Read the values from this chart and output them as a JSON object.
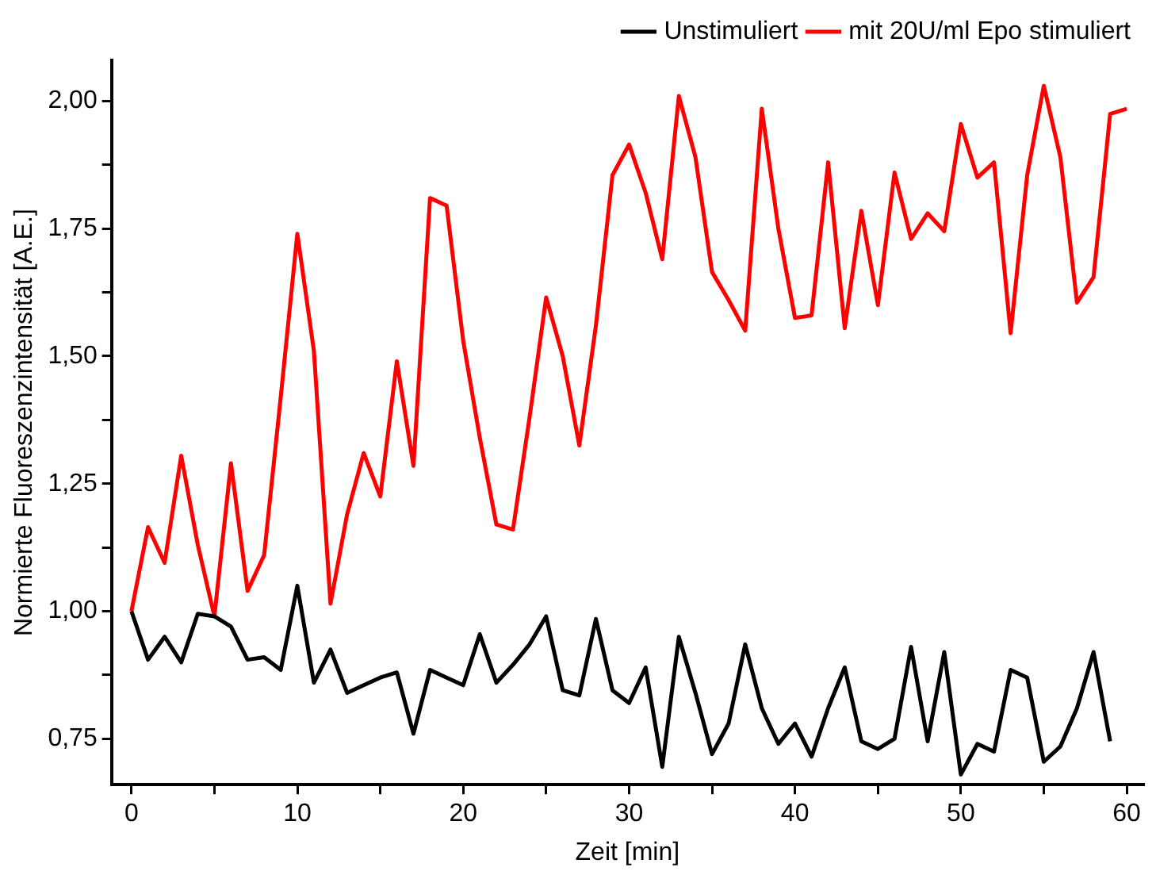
{
  "chart_data": {
    "type": "line",
    "xlabel": "Zeit [min]",
    "ylabel": "Normierte Fluoreszenzintensität [A.E.]",
    "x": [
      0,
      1,
      2,
      3,
      4,
      5,
      6,
      7,
      8,
      9,
      10,
      11,
      12,
      13,
      14,
      15,
      16,
      17,
      18,
      19,
      20,
      21,
      22,
      23,
      24,
      25,
      26,
      27,
      28,
      29,
      30,
      31,
      32,
      33,
      34,
      35,
      36,
      37,
      38,
      39,
      40,
      41,
      42,
      43,
      44,
      45,
      46,
      47,
      48,
      49,
      50,
      51,
      52,
      53,
      54,
      55,
      56,
      57,
      58,
      59,
      60
    ],
    "series": [
      {
        "name": "Unstimuliert",
        "color": "#000000",
        "values": [
          1.0,
          0.905,
          0.95,
          0.9,
          0.995,
          0.99,
          0.97,
          0.905,
          0.91,
          0.885,
          1.05,
          0.86,
          0.925,
          0.84,
          0.855,
          0.87,
          0.88,
          0.76,
          0.885,
          0.87,
          0.855,
          0.955,
          0.86,
          0.895,
          0.935,
          0.99,
          0.845,
          0.835,
          0.985,
          0.845,
          0.82,
          0.89,
          0.695,
          0.95,
          0.84,
          0.72,
          0.78,
          0.935,
          0.81,
          0.74,
          0.78,
          0.715,
          0.81,
          0.89,
          0.745,
          0.73,
          0.75,
          0.93,
          0.745,
          0.92,
          0.68,
          0.74,
          0.725,
          0.885,
          0.87,
          0.705,
          0.735,
          0.81,
          0.92,
          0.745,
          null
        ]
      },
      {
        "name": "mit 20U/ml Epo stimuliert",
        "color": "#ff0000",
        "values": [
          1.0,
          1.165,
          1.095,
          1.305,
          1.13,
          0.99,
          1.29,
          1.04,
          1.11,
          1.42,
          1.74,
          1.51,
          1.015,
          1.19,
          1.31,
          1.225,
          1.49,
          1.285,
          1.81,
          1.795,
          1.53,
          1.34,
          1.17,
          1.16,
          1.38,
          1.615,
          1.5,
          1.325,
          1.56,
          1.855,
          1.915,
          1.82,
          1.69,
          2.01,
          1.89,
          1.665,
          1.61,
          1.55,
          1.985,
          1.75,
          1.575,
          1.58,
          1.88,
          1.555,
          1.785,
          1.6,
          1.86,
          1.73,
          1.78,
          1.745,
          1.955,
          1.85,
          1.88,
          1.545,
          1.855,
          2.03,
          1.89,
          1.605,
          1.655,
          1.975,
          1.985
        ]
      }
    ],
    "xlim": [
      -1.2,
      61
    ],
    "xticks": [
      0,
      {
        "value": 5,
        "label": null
      },
      10,
      {
        "value": 15,
        "label": null
      },
      20,
      {
        "value": 25,
        "label": null
      },
      30,
      {
        "value": 35,
        "label": null
      },
      40,
      {
        "value": 45,
        "label": null
      },
      50,
      {
        "value": 55,
        "label": null
      },
      60
    ],
    "ylim": [
      0.66,
      2.08
    ],
    "yticks": [
      {
        "value": 0.75,
        "label": "0,75"
      },
      {
        "value": 0.875,
        "label": null
      },
      {
        "value": 1,
        "label": "1,00"
      },
      {
        "value": 1.125,
        "label": null
      },
      {
        "value": 1.25,
        "label": "1,25"
      },
      {
        "value": 1.375,
        "label": null
      },
      {
        "value": 1.5,
        "label": "1,50"
      },
      {
        "value": 1.625,
        "label": null
      },
      {
        "value": 1.75,
        "label": "1,75"
      },
      {
        "value": 1.875,
        "label": null
      },
      {
        "value": 2,
        "label": "2,00"
      }
    ],
    "grid": false,
    "legend": "top right",
    "marker": "none",
    "line_style": "solid"
  }
}
